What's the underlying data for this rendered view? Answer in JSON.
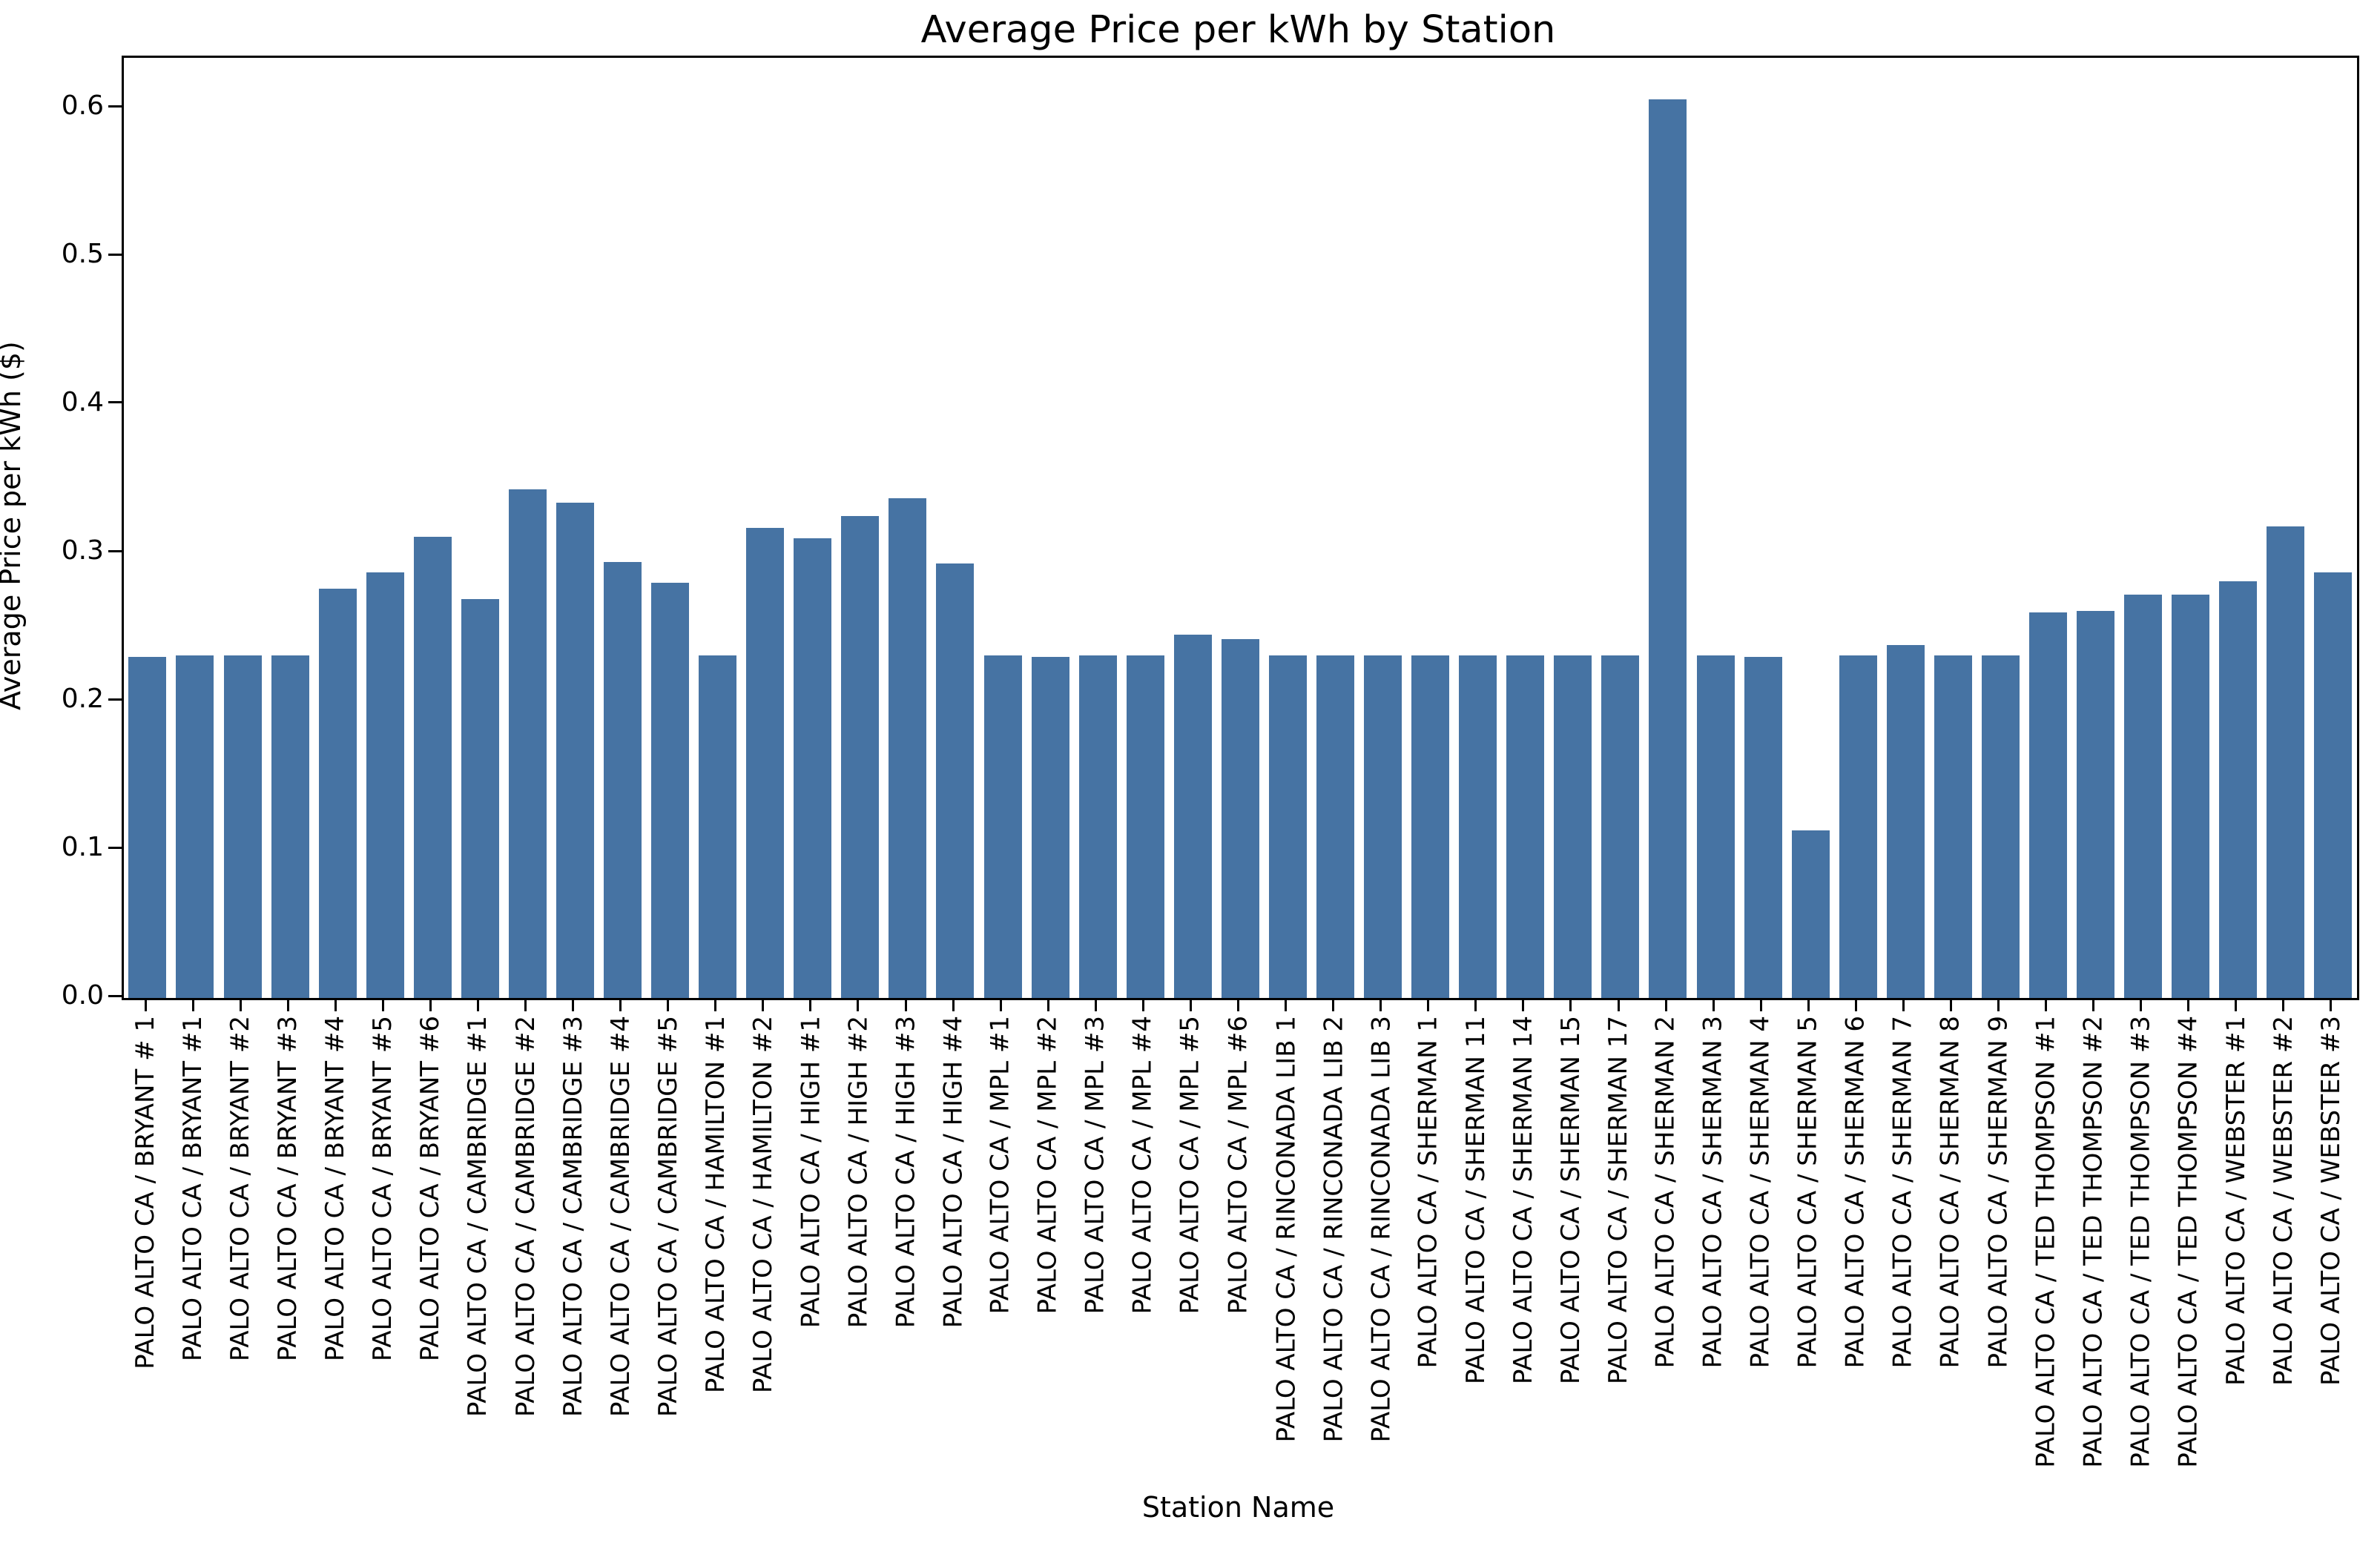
{
  "chart_data": {
    "type": "bar",
    "title": "Average Price per kWh by Station",
    "xlabel": "Station Name",
    "ylabel": "Average Price per kWh ($)",
    "bar_color": "#4673A3",
    "background_color": "#ffffff",
    "grid": false,
    "legend": null,
    "ylim": [
      0,
      0.634
    ],
    "yticks": [
      0.0,
      0.1,
      0.2,
      0.3,
      0.4,
      0.5,
      0.6
    ],
    "categories": [
      "PALO ALTO CA / BRYANT # 1",
      "PALO ALTO CA / BRYANT #1",
      "PALO ALTO CA / BRYANT #2",
      "PALO ALTO CA / BRYANT #3",
      "PALO ALTO CA / BRYANT #4",
      "PALO ALTO CA / BRYANT #5",
      "PALO ALTO CA / BRYANT #6",
      "PALO ALTO CA / CAMBRIDGE #1",
      "PALO ALTO CA / CAMBRIDGE #2",
      "PALO ALTO CA / CAMBRIDGE #3",
      "PALO ALTO CA / CAMBRIDGE #4",
      "PALO ALTO CA / CAMBRIDGE #5",
      "PALO ALTO CA / HAMILTON #1",
      "PALO ALTO CA / HAMILTON #2",
      "PALO ALTO CA / HIGH #1",
      "PALO ALTO CA / HIGH #2",
      "PALO ALTO CA / HIGH #3",
      "PALO ALTO CA / HIGH #4",
      "PALO ALTO CA / MPL #1",
      "PALO ALTO CA / MPL #2",
      "PALO ALTO CA / MPL #3",
      "PALO ALTO CA / MPL #4",
      "PALO ALTO CA / MPL #5",
      "PALO ALTO CA / MPL #6",
      "PALO ALTO CA / RINCONADA LIB 1",
      "PALO ALTO CA / RINCONADA LIB 2",
      "PALO ALTO CA / RINCONADA LIB 3",
      "PALO ALTO CA / SHERMAN 1",
      "PALO ALTO CA / SHERMAN 11",
      "PALO ALTO CA / SHERMAN 14",
      "PALO ALTO CA / SHERMAN 15",
      "PALO ALTO CA / SHERMAN 17",
      "PALO ALTO CA / SHERMAN 2",
      "PALO ALTO CA / SHERMAN 3",
      "PALO ALTO CA / SHERMAN 4",
      "PALO ALTO CA / SHERMAN 5",
      "PALO ALTO CA / SHERMAN 6",
      "PALO ALTO CA / SHERMAN 7",
      "PALO ALTO CA / SHERMAN 8",
      "PALO ALTO CA / SHERMAN 9",
      "PALO ALTO CA / TED THOMPSON #1",
      "PALO ALTO CA / TED THOMPSON #2",
      "PALO ALTO CA / TED THOMPSON #3",
      "PALO ALTO CA / TED THOMPSON #4",
      "PALO ALTO CA / WEBSTER #1",
      "PALO ALTO CA / WEBSTER #2",
      "PALO ALTO CA / WEBSTER #3"
    ],
    "values": [
      0.23,
      0.231,
      0.231,
      0.231,
      0.276,
      0.287,
      0.311,
      0.269,
      0.343,
      0.334,
      0.294,
      0.28,
      0.231,
      0.317,
      0.31,
      0.325,
      0.337,
      0.293,
      0.231,
      0.23,
      0.231,
      0.231,
      0.245,
      0.242,
      0.231,
      0.231,
      0.231,
      0.231,
      0.231,
      0.231,
      0.231,
      0.231,
      0.606,
      0.231,
      0.23,
      0.113,
      0.231,
      0.238,
      0.231,
      0.231,
      0.26,
      0.261,
      0.272,
      0.272,
      0.281,
      0.318,
      0.287
    ]
  }
}
